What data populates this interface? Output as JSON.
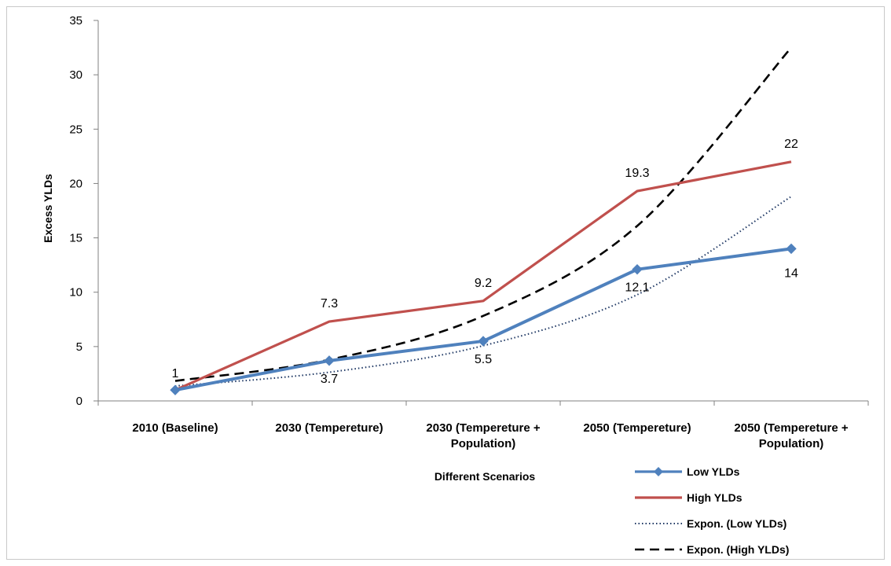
{
  "chart_data": {
    "type": "line",
    "title": "",
    "xlabel": "Different Scenarios",
    "ylabel": "Excess YLDs",
    "ylim": [
      0,
      35
    ],
    "yticks": [
      0,
      5,
      10,
      15,
      20,
      25,
      30,
      35
    ],
    "categories": [
      [
        "2010 (Baseline)"
      ],
      [
        "2030 (Tempereture)"
      ],
      [
        "2030 (Tempereture +",
        "Population)"
      ],
      [
        "2050 (Tempereture)"
      ],
      [
        "2050 (Tempereture +",
        "Population)"
      ]
    ],
    "grid": false,
    "legend_position": "bottom-right",
    "series": [
      {
        "name": "Low YLDs",
        "values": [
          1,
          3.7,
          5.5,
          12.1,
          14
        ],
        "color": "#4f81bd",
        "style": "solid-diamond",
        "data_labels": [
          "",
          "3.7",
          "5.5",
          "12.1",
          "14"
        ]
      },
      {
        "name": "High YLDs",
        "values": [
          1,
          7.3,
          9.2,
          19.3,
          22
        ],
        "color": "#c0504d",
        "style": "solid",
        "data_labels": [
          "1",
          "7.3",
          "9.2",
          "19.3",
          "22"
        ]
      },
      {
        "name": "Expon. (Low YLDs)",
        "values": [
          1.37,
          2.64,
          5.08,
          9.77,
          18.8
        ],
        "color": "#1f3864",
        "style": "dotted",
        "data_labels": []
      },
      {
        "name": "Expon. (High YLDs)",
        "values": [
          1.84,
          3.79,
          7.82,
          16.1,
          32.5
        ],
        "color": "#000000",
        "style": "dashed",
        "data_labels": []
      }
    ]
  }
}
